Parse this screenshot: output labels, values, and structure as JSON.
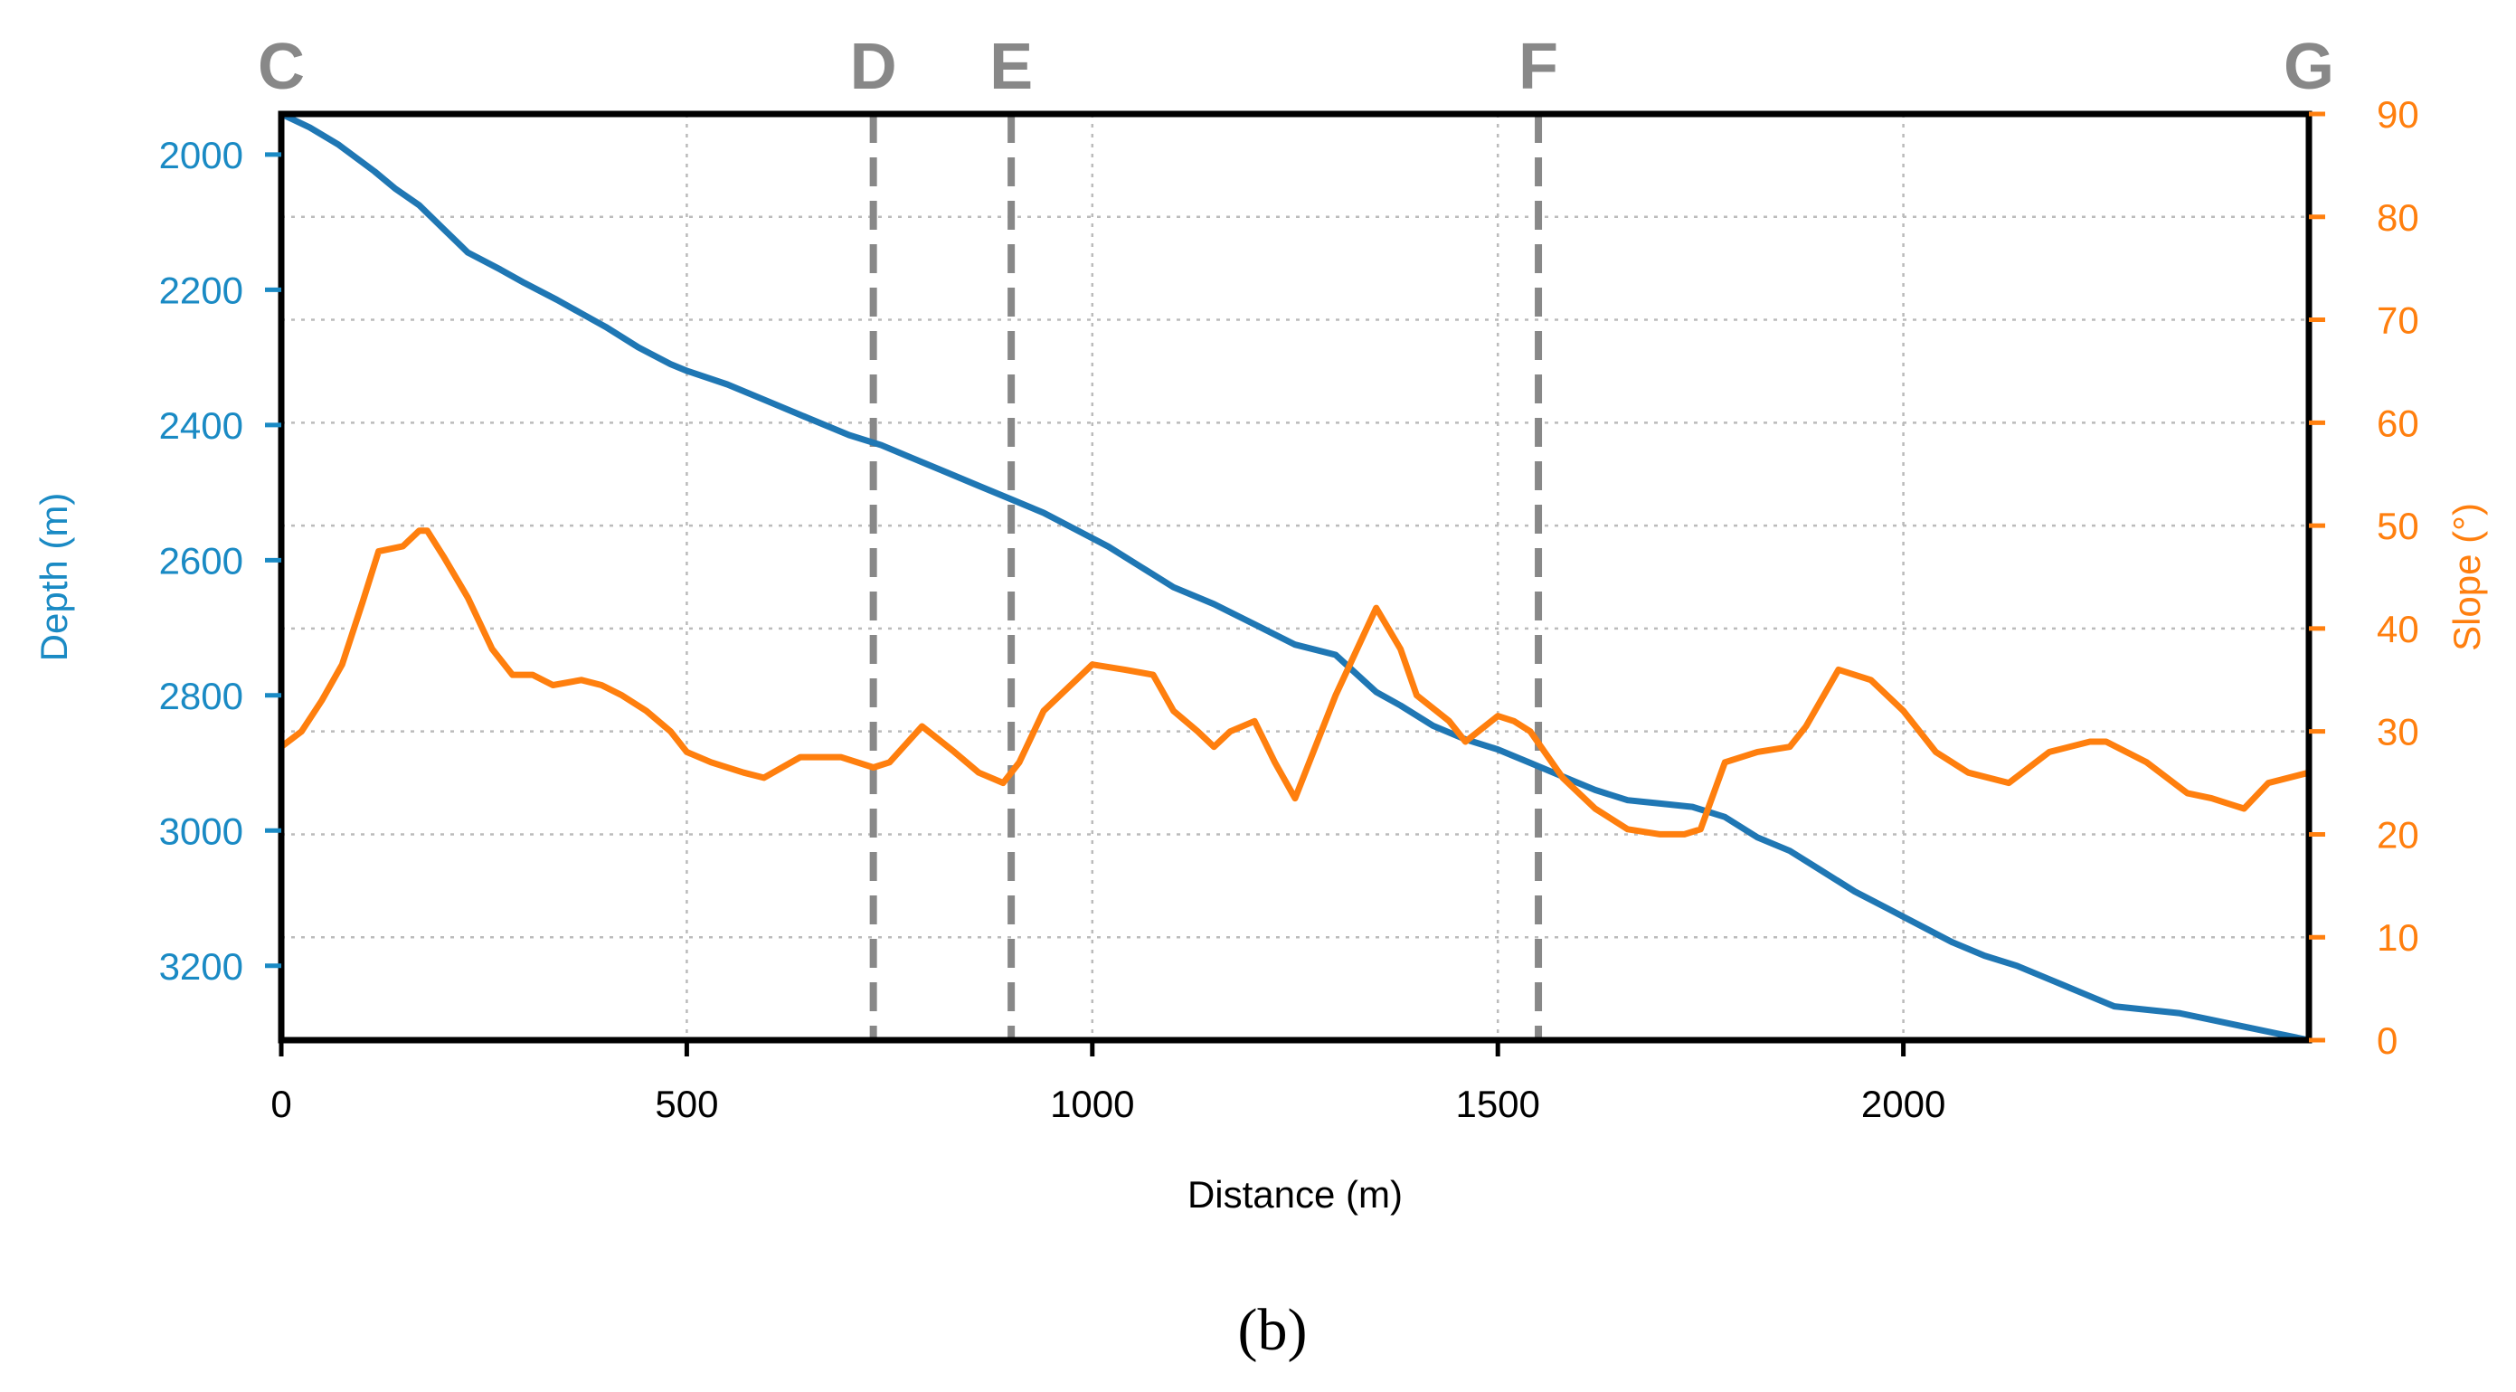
{
  "chart_data": {
    "type": "line",
    "panel_label": "(b)",
    "xlabel": "Distance (m)",
    "ylabel_left": "Depth (m)",
    "ylabel_right": "Slope (°)",
    "xlim": [
      0,
      2500
    ],
    "ylim_left": [
      1940,
      3310
    ],
    "ylim_right": [
      0,
      90
    ],
    "left_axis_inverted": true,
    "grid": true,
    "x_ticks": [
      0,
      500,
      1000,
      1500,
      2000
    ],
    "y_left_ticks": [
      2000,
      2200,
      2400,
      2600,
      2800,
      3000,
      3200
    ],
    "y_right_ticks": [
      0,
      10,
      20,
      30,
      40,
      50,
      60,
      70,
      80,
      90
    ],
    "colors": {
      "depth": "#1f77b4",
      "slope": "#ff7f0e",
      "left_axis_text": "#1a8ac4",
      "right_axis_text": "#ff7f0e",
      "marker": "#888888",
      "frame": "#000000"
    },
    "markers": [
      {
        "label": "C",
        "x": 0,
        "dashed": false
      },
      {
        "label": "D",
        "x": 730,
        "dashed": true
      },
      {
        "label": "E",
        "x": 900,
        "dashed": true
      },
      {
        "label": "F",
        "x": 1550,
        "dashed": true
      },
      {
        "label": "G",
        "x": 2500,
        "dashed": false
      }
    ],
    "series": [
      {
        "name": "Depth",
        "axis": "left",
        "x": [
          0,
          35,
          70,
          115,
          140,
          170,
          200,
          230,
          270,
          300,
          340,
          370,
          400,
          440,
          480,
          500,
          550,
          600,
          650,
          700,
          740,
          780,
          820,
          860,
          900,
          940,
          980,
          1020,
          1060,
          1100,
          1150,
          1200,
          1250,
          1300,
          1350,
          1380,
          1420,
          1460,
          1500,
          1540,
          1580,
          1620,
          1660,
          1700,
          1740,
          1780,
          1820,
          1860,
          1900,
          1940,
          1980,
          2020,
          2060,
          2100,
          2140,
          2180,
          2220,
          2260,
          2300,
          2340,
          2380,
          2420,
          2460,
          2500
        ],
        "y": [
          1940,
          1960,
          1985,
          2025,
          2050,
          2075,
          2110,
          2145,
          2170,
          2190,
          2215,
          2235,
          2255,
          2285,
          2310,
          2320,
          2340,
          2365,
          2390,
          2415,
          2430,
          2450,
          2470,
          2490,
          2510,
          2530,
          2555,
          2580,
          2610,
          2640,
          2665,
          2695,
          2725,
          2740,
          2795,
          2815,
          2845,
          2865,
          2880,
          2900,
          2920,
          2940,
          2955,
          2960,
          2965,
          2980,
          3010,
          3030,
          3060,
          3090,
          3115,
          3140,
          3165,
          3185,
          3200,
          3220,
          3240,
          3260,
          3265,
          3270,
          3280,
          3290,
          3300,
          3310
        ]
      },
      {
        "name": "Slope",
        "axis": "right",
        "x": [
          0,
          25,
          50,
          75,
          100,
          120,
          150,
          170,
          180,
          200,
          230,
          260,
          285,
          310,
          335,
          370,
          395,
          420,
          450,
          480,
          500,
          530,
          570,
          595,
          640,
          690,
          730,
          750,
          790,
          830,
          860,
          890,
          910,
          940,
          980,
          1000,
          1040,
          1075,
          1100,
          1130,
          1150,
          1170,
          1200,
          1225,
          1250,
          1300,
          1350,
          1380,
          1400,
          1440,
          1460,
          1500,
          1520,
          1540,
          1580,
          1620,
          1660,
          1700,
          1730,
          1750,
          1780,
          1820,
          1860,
          1880,
          1920,
          1960,
          2000,
          2040,
          2080,
          2130,
          2180,
          2230,
          2250,
          2300,
          2350,
          2380,
          2400,
          2420,
          2450,
          2500
        ],
        "y": [
          28.5,
          30,
          33,
          36.5,
          42.5,
          47.5,
          48,
          49.5,
          49.5,
          47,
          43,
          38,
          35.5,
          35.5,
          34.5,
          35,
          34.5,
          33.5,
          32,
          30,
          28,
          27,
          26,
          25.5,
          27.5,
          27.5,
          26.5,
          27,
          30.5,
          28,
          26,
          25,
          27,
          32,
          35,
          36.5,
          36,
          35.5,
          32,
          30,
          28.5,
          30,
          31,
          27,
          23.5,
          33.5,
          42,
          38,
          33.5,
          31,
          29,
          31.5,
          31,
          30,
          25.5,
          22.5,
          20.5,
          20,
          20,
          20.5,
          27,
          28,
          28.5,
          30.5,
          36,
          35,
          32,
          28,
          26,
          25,
          28,
          29,
          29,
          27,
          24,
          23.5,
          23,
          22.5,
          25,
          26
        ]
      }
    ]
  }
}
